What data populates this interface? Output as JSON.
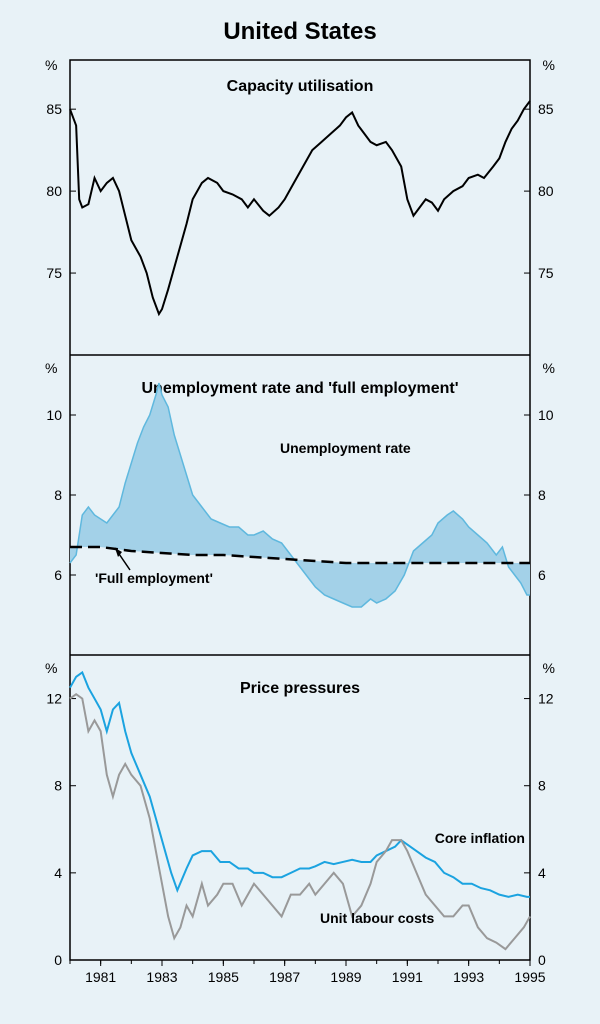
{
  "title": "United States",
  "title_fontsize": 24,
  "background_color": "#e8f2f7",
  "frame_color": "#000000",
  "x_axis": {
    "min": 1980,
    "max": 1995,
    "ticks": [
      1981,
      1983,
      1985,
      1987,
      1989,
      1991,
      1993,
      1995
    ],
    "tick_fontsize": 14
  },
  "panel1": {
    "title": "Capacity utilisation",
    "ylabel_left": "%",
    "ylabel_right": "%",
    "ylim": [
      70,
      88
    ],
    "yticks": [
      75,
      80,
      85
    ],
    "series": {
      "capacity": {
        "color": "#000000",
        "width": 2,
        "data": [
          [
            1980.0,
            85.0
          ],
          [
            1980.2,
            84.0
          ],
          [
            1980.3,
            79.5
          ],
          [
            1980.4,
            79.0
          ],
          [
            1980.6,
            79.2
          ],
          [
            1980.8,
            80.8
          ],
          [
            1981.0,
            80.0
          ],
          [
            1981.2,
            80.5
          ],
          [
            1981.4,
            80.8
          ],
          [
            1981.6,
            80.0
          ],
          [
            1981.8,
            78.5
          ],
          [
            1982.0,
            77.0
          ],
          [
            1982.3,
            76.0
          ],
          [
            1982.5,
            75.0
          ],
          [
            1982.7,
            73.5
          ],
          [
            1982.9,
            72.5
          ],
          [
            1983.0,
            72.8
          ],
          [
            1983.2,
            74.0
          ],
          [
            1983.5,
            76.0
          ],
          [
            1983.8,
            78.0
          ],
          [
            1984.0,
            79.5
          ],
          [
            1984.3,
            80.5
          ],
          [
            1984.5,
            80.8
          ],
          [
            1984.8,
            80.5
          ],
          [
            1985.0,
            80.0
          ],
          [
            1985.3,
            79.8
          ],
          [
            1985.6,
            79.5
          ],
          [
            1985.8,
            79.0
          ],
          [
            1986.0,
            79.5
          ],
          [
            1986.3,
            78.8
          ],
          [
            1986.5,
            78.5
          ],
          [
            1986.8,
            79.0
          ],
          [
            1987.0,
            79.5
          ],
          [
            1987.3,
            80.5
          ],
          [
            1987.6,
            81.5
          ],
          [
            1987.9,
            82.5
          ],
          [
            1988.2,
            83.0
          ],
          [
            1988.5,
            83.5
          ],
          [
            1988.8,
            84.0
          ],
          [
            1989.0,
            84.5
          ],
          [
            1989.2,
            84.8
          ],
          [
            1989.4,
            84.0
          ],
          [
            1989.6,
            83.5
          ],
          [
            1989.8,
            83.0
          ],
          [
            1990.0,
            82.8
          ],
          [
            1990.3,
            83.0
          ],
          [
            1990.5,
            82.5
          ],
          [
            1990.8,
            81.5
          ],
          [
            1991.0,
            79.5
          ],
          [
            1991.2,
            78.5
          ],
          [
            1991.4,
            79.0
          ],
          [
            1991.6,
            79.5
          ],
          [
            1991.8,
            79.3
          ],
          [
            1992.0,
            78.8
          ],
          [
            1992.2,
            79.5
          ],
          [
            1992.5,
            80.0
          ],
          [
            1992.8,
            80.3
          ],
          [
            1993.0,
            80.8
          ],
          [
            1993.3,
            81.0
          ],
          [
            1993.5,
            80.8
          ],
          [
            1993.8,
            81.5
          ],
          [
            1994.0,
            82.0
          ],
          [
            1994.2,
            83.0
          ],
          [
            1994.4,
            83.8
          ],
          [
            1994.6,
            84.3
          ],
          [
            1994.8,
            85.0
          ],
          [
            1995.0,
            85.5
          ]
        ]
      }
    }
  },
  "panel2": {
    "title": "Unemployment rate and 'full employment'",
    "ylabel_left": "%",
    "ylabel_right": "%",
    "ylim": [
      4,
      11.5
    ],
    "yticks": [
      6,
      8,
      10
    ],
    "fill_color": "#a3d1e8",
    "labels": {
      "unemployment": "Unemployment rate",
      "full_employment": "'Full employment'"
    },
    "series": {
      "unemployment": {
        "color": "#5fb8de",
        "width": 1.5,
        "data": [
          [
            1980.0,
            6.3
          ],
          [
            1980.2,
            6.5
          ],
          [
            1980.4,
            7.5
          ],
          [
            1980.6,
            7.7
          ],
          [
            1980.8,
            7.5
          ],
          [
            1981.0,
            7.4
          ],
          [
            1981.2,
            7.3
          ],
          [
            1981.4,
            7.5
          ],
          [
            1981.6,
            7.7
          ],
          [
            1981.8,
            8.3
          ],
          [
            1982.0,
            8.8
          ],
          [
            1982.2,
            9.3
          ],
          [
            1982.4,
            9.7
          ],
          [
            1982.6,
            10.0
          ],
          [
            1982.8,
            10.5
          ],
          [
            1982.9,
            10.8
          ],
          [
            1983.0,
            10.5
          ],
          [
            1983.2,
            10.2
          ],
          [
            1983.4,
            9.5
          ],
          [
            1983.6,
            9.0
          ],
          [
            1983.8,
            8.5
          ],
          [
            1984.0,
            8.0
          ],
          [
            1984.3,
            7.7
          ],
          [
            1984.6,
            7.4
          ],
          [
            1984.9,
            7.3
          ],
          [
            1985.2,
            7.2
          ],
          [
            1985.5,
            7.2
          ],
          [
            1985.8,
            7.0
          ],
          [
            1986.0,
            7.0
          ],
          [
            1986.3,
            7.1
          ],
          [
            1986.6,
            6.9
          ],
          [
            1986.9,
            6.8
          ],
          [
            1987.2,
            6.5
          ],
          [
            1987.5,
            6.2
          ],
          [
            1987.8,
            5.9
          ],
          [
            1988.0,
            5.7
          ],
          [
            1988.3,
            5.5
          ],
          [
            1988.6,
            5.4
          ],
          [
            1988.9,
            5.3
          ],
          [
            1989.2,
            5.2
          ],
          [
            1989.5,
            5.2
          ],
          [
            1989.8,
            5.4
          ],
          [
            1990.0,
            5.3
          ],
          [
            1990.3,
            5.4
          ],
          [
            1990.6,
            5.6
          ],
          [
            1990.9,
            6.0
          ],
          [
            1991.2,
            6.6
          ],
          [
            1991.5,
            6.8
          ],
          [
            1991.8,
            7.0
          ],
          [
            1992.0,
            7.3
          ],
          [
            1992.3,
            7.5
          ],
          [
            1992.5,
            7.6
          ],
          [
            1992.8,
            7.4
          ],
          [
            1993.0,
            7.2
          ],
          [
            1993.3,
            7.0
          ],
          [
            1993.6,
            6.8
          ],
          [
            1993.9,
            6.5
          ],
          [
            1994.1,
            6.7
          ],
          [
            1994.3,
            6.2
          ],
          [
            1994.5,
            6.0
          ],
          [
            1994.7,
            5.8
          ],
          [
            1994.9,
            5.5
          ],
          [
            1995.0,
            5.5
          ]
        ]
      },
      "full_employment": {
        "color": "#000000",
        "width": 2.5,
        "dash": "12,6",
        "data": [
          [
            1980.0,
            6.7
          ],
          [
            1981.0,
            6.7
          ],
          [
            1982.0,
            6.6
          ],
          [
            1983.0,
            6.55
          ],
          [
            1984.0,
            6.5
          ],
          [
            1985.0,
            6.5
          ],
          [
            1986.0,
            6.45
          ],
          [
            1987.0,
            6.4
          ],
          [
            1988.0,
            6.35
          ],
          [
            1989.0,
            6.3
          ],
          [
            1990.0,
            6.3
          ],
          [
            1991.0,
            6.3
          ],
          [
            1992.0,
            6.3
          ],
          [
            1993.0,
            6.3
          ],
          [
            1994.0,
            6.3
          ],
          [
            1995.0,
            6.3
          ]
        ]
      }
    }
  },
  "panel3": {
    "title": "Price  pressures",
    "ylabel_left": "%",
    "ylabel_right": "%",
    "ylim": [
      0,
      14
    ],
    "yticks": [
      0,
      4,
      8,
      12
    ],
    "labels": {
      "core_inflation": "Core inflation",
      "unit_labour": "Unit labour costs"
    },
    "series": {
      "core_inflation": {
        "color": "#1ba3e0",
        "width": 2,
        "data": [
          [
            1980.0,
            12.5
          ],
          [
            1980.2,
            13.0
          ],
          [
            1980.4,
            13.2
          ],
          [
            1980.6,
            12.5
          ],
          [
            1980.8,
            12.0
          ],
          [
            1981.0,
            11.5
          ],
          [
            1981.2,
            10.5
          ],
          [
            1981.4,
            11.5
          ],
          [
            1981.6,
            11.8
          ],
          [
            1981.8,
            10.5
          ],
          [
            1982.0,
            9.5
          ],
          [
            1982.3,
            8.5
          ],
          [
            1982.6,
            7.5
          ],
          [
            1982.9,
            6.0
          ],
          [
            1983.1,
            5.0
          ],
          [
            1983.3,
            4.0
          ],
          [
            1983.5,
            3.2
          ],
          [
            1983.8,
            4.2
          ],
          [
            1984.0,
            4.8
          ],
          [
            1984.3,
            5.0
          ],
          [
            1984.6,
            5.0
          ],
          [
            1984.9,
            4.5
          ],
          [
            1985.2,
            4.5
          ],
          [
            1985.5,
            4.2
          ],
          [
            1985.8,
            4.2
          ],
          [
            1986.0,
            4.0
          ],
          [
            1986.3,
            4.0
          ],
          [
            1986.6,
            3.8
          ],
          [
            1986.9,
            3.8
          ],
          [
            1987.2,
            4.0
          ],
          [
            1987.5,
            4.2
          ],
          [
            1987.8,
            4.2
          ],
          [
            1988.0,
            4.3
          ],
          [
            1988.3,
            4.5
          ],
          [
            1988.6,
            4.4
          ],
          [
            1988.9,
            4.5
          ],
          [
            1989.2,
            4.6
          ],
          [
            1989.5,
            4.5
          ],
          [
            1989.8,
            4.5
          ],
          [
            1990.0,
            4.8
          ],
          [
            1990.3,
            5.0
          ],
          [
            1990.6,
            5.2
          ],
          [
            1990.8,
            5.5
          ],
          [
            1991.0,
            5.3
          ],
          [
            1991.3,
            5.0
          ],
          [
            1991.6,
            4.7
          ],
          [
            1991.9,
            4.5
          ],
          [
            1992.2,
            4.0
          ],
          [
            1992.5,
            3.8
          ],
          [
            1992.8,
            3.5
          ],
          [
            1993.1,
            3.5
          ],
          [
            1993.4,
            3.3
          ],
          [
            1993.7,
            3.2
          ],
          [
            1994.0,
            3.0
          ],
          [
            1994.3,
            2.9
          ],
          [
            1994.6,
            3.0
          ],
          [
            1994.9,
            2.9
          ],
          [
            1995.0,
            2.9
          ]
        ]
      },
      "unit_labour": {
        "color": "#999999",
        "width": 2,
        "data": [
          [
            1980.0,
            12.0
          ],
          [
            1980.2,
            12.2
          ],
          [
            1980.4,
            12.0
          ],
          [
            1980.6,
            10.5
          ],
          [
            1980.8,
            11.0
          ],
          [
            1981.0,
            10.5
          ],
          [
            1981.2,
            8.5
          ],
          [
            1981.4,
            7.5
          ],
          [
            1981.6,
            8.5
          ],
          [
            1981.8,
            9.0
          ],
          [
            1982.0,
            8.5
          ],
          [
            1982.3,
            8.0
          ],
          [
            1982.6,
            6.5
          ],
          [
            1982.8,
            5.0
          ],
          [
            1983.0,
            3.5
          ],
          [
            1983.2,
            2.0
          ],
          [
            1983.4,
            1.0
          ],
          [
            1983.6,
            1.5
          ],
          [
            1983.8,
            2.5
          ],
          [
            1984.0,
            2.0
          ],
          [
            1984.3,
            3.5
          ],
          [
            1984.5,
            2.5
          ],
          [
            1984.8,
            3.0
          ],
          [
            1985.0,
            3.5
          ],
          [
            1985.3,
            3.5
          ],
          [
            1985.6,
            2.5
          ],
          [
            1985.8,
            3.0
          ],
          [
            1986.0,
            3.5
          ],
          [
            1986.3,
            3.0
          ],
          [
            1986.6,
            2.5
          ],
          [
            1986.9,
            2.0
          ],
          [
            1987.2,
            3.0
          ],
          [
            1987.5,
            3.0
          ],
          [
            1987.8,
            3.5
          ],
          [
            1988.0,
            3.0
          ],
          [
            1988.3,
            3.5
          ],
          [
            1988.6,
            4.0
          ],
          [
            1988.9,
            3.5
          ],
          [
            1989.2,
            2.0
          ],
          [
            1989.5,
            2.5
          ],
          [
            1989.8,
            3.5
          ],
          [
            1990.0,
            4.5
          ],
          [
            1990.3,
            5.0
          ],
          [
            1990.5,
            5.5
          ],
          [
            1990.8,
            5.5
          ],
          [
            1991.0,
            5.0
          ],
          [
            1991.3,
            4.0
          ],
          [
            1991.6,
            3.0
          ],
          [
            1991.9,
            2.5
          ],
          [
            1992.2,
            2.0
          ],
          [
            1992.5,
            2.0
          ],
          [
            1992.8,
            2.5
          ],
          [
            1993.0,
            2.5
          ],
          [
            1993.3,
            1.5
          ],
          [
            1993.6,
            1.0
          ],
          [
            1993.9,
            0.8
          ],
          [
            1994.2,
            0.5
          ],
          [
            1994.5,
            1.0
          ],
          [
            1994.8,
            1.5
          ],
          [
            1995.0,
            2.0
          ]
        ]
      }
    }
  }
}
